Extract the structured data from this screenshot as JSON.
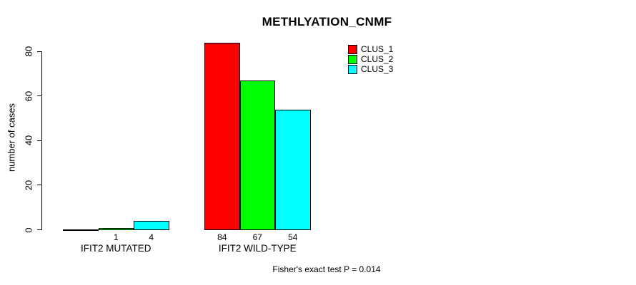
{
  "chart_data": {
    "type": "bar",
    "title": "METHLYATION_CNMF",
    "ylabel": "number of cases",
    "xlabel": "",
    "ylim": [
      0,
      80
    ],
    "yticks": [
      0,
      20,
      40,
      60,
      80
    ],
    "grid": false,
    "legend_position": "top-right",
    "background_color": "#FFFFFF",
    "axis_color": "#000000",
    "categories": [
      "IFIT2 MUTATED",
      "IFIT2 WILD-TYPE"
    ],
    "series": [
      {
        "name": "CLUS_1",
        "color": "#FF0000",
        "values": [
          0,
          84
        ]
      },
      {
        "name": "CLUS_2",
        "color": "#00FF00",
        "values": [
          1,
          67
        ]
      },
      {
        "name": "CLUS_3",
        "color": "#00FFFF",
        "values": [
          4,
          54
        ]
      }
    ],
    "count_labels": [
      [
        "",
        "1",
        "4"
      ],
      [
        "84",
        "67",
        "54"
      ]
    ]
  },
  "footer": {
    "text": "Fisher's exact test P = 0.014"
  }
}
